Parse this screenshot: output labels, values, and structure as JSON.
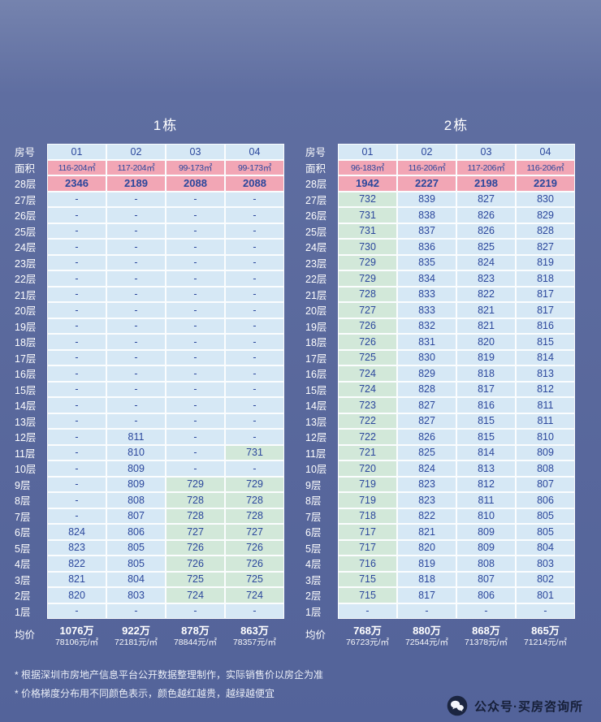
{
  "chart_data": [
    {
      "type": "table",
      "title": "1栋",
      "row_label_header": "房号",
      "area_row_label": "面积",
      "avg_row_label": "均价",
      "columns": [
        "01",
        "02",
        "03",
        "04"
      ],
      "areas": [
        "116-204㎡",
        "117-204㎡",
        "99-173㎡",
        "99-173㎡"
      ],
      "floor_rows": [
        [
          "28层",
          "2346",
          "2189",
          "2088",
          "2088",
          "pppp"
        ],
        [
          "27层",
          "-",
          "-",
          "-",
          "-",
          "bbbb"
        ],
        [
          "26层",
          "-",
          "-",
          "-",
          "-",
          "bbbb"
        ],
        [
          "25层",
          "-",
          "-",
          "-",
          "-",
          "bbbb"
        ],
        [
          "24层",
          "-",
          "-",
          "-",
          "-",
          "bbbb"
        ],
        [
          "23层",
          "-",
          "-",
          "-",
          "-",
          "bbbb"
        ],
        [
          "22层",
          "-",
          "-",
          "-",
          "-",
          "bbbb"
        ],
        [
          "21层",
          "-",
          "-",
          "-",
          "-",
          "bbbb"
        ],
        [
          "20层",
          "-",
          "-",
          "-",
          "-",
          "bbbb"
        ],
        [
          "19层",
          "-",
          "-",
          "-",
          "-",
          "bbbb"
        ],
        [
          "18层",
          "-",
          "-",
          "-",
          "-",
          "bbbb"
        ],
        [
          "17层",
          "-",
          "-",
          "-",
          "-",
          "bbbb"
        ],
        [
          "16层",
          "-",
          "-",
          "-",
          "-",
          "bbbb"
        ],
        [
          "15层",
          "-",
          "-",
          "-",
          "-",
          "bbbb"
        ],
        [
          "14层",
          "-",
          "-",
          "-",
          "-",
          "bbbb"
        ],
        [
          "13层",
          "-",
          "-",
          "-",
          "-",
          "bbbb"
        ],
        [
          "12层",
          "-",
          "811",
          "-",
          "-",
          "bbbb"
        ],
        [
          "11层",
          "-",
          "810",
          "-",
          "731",
          "bbbg"
        ],
        [
          "10层",
          "-",
          "809",
          "-",
          "-",
          "bbbb"
        ],
        [
          "9层",
          "-",
          "809",
          "729",
          "729",
          "bbgg"
        ],
        [
          "8层",
          "-",
          "808",
          "728",
          "728",
          "bbgg"
        ],
        [
          "7层",
          "-",
          "807",
          "728",
          "728",
          "bbgg"
        ],
        [
          "6层",
          "824",
          "806",
          "727",
          "727",
          "bbgg"
        ],
        [
          "5层",
          "823",
          "805",
          "726",
          "726",
          "bbgg"
        ],
        [
          "4层",
          "822",
          "805",
          "726",
          "726",
          "bbgg"
        ],
        [
          "3层",
          "821",
          "804",
          "725",
          "725",
          "bbgg"
        ],
        [
          "2层",
          "820",
          "803",
          "724",
          "724",
          "bbgg"
        ],
        [
          "1层",
          "-",
          "-",
          "-",
          "-",
          "bbbb"
        ]
      ],
      "averages": [
        [
          "1076万",
          "78106元/㎡"
        ],
        [
          "922万",
          "72181元/㎡"
        ],
        [
          "878万",
          "78844元/㎡"
        ],
        [
          "863万",
          "78357元/㎡"
        ]
      ]
    },
    {
      "type": "table",
      "title": "2栋",
      "row_label_header": "房号",
      "area_row_label": "面积",
      "avg_row_label": "均价",
      "columns": [
        "01",
        "02",
        "03",
        "04"
      ],
      "areas": [
        "96-183㎡",
        "116-206㎡",
        "117-206㎡",
        "116-206㎡"
      ],
      "floor_rows": [
        [
          "28层",
          "1942",
          "2227",
          "2198",
          "2219",
          "pppp"
        ],
        [
          "27层",
          "732",
          "839",
          "827",
          "830",
          "gbbb"
        ],
        [
          "26层",
          "731",
          "838",
          "826",
          "829",
          "gbbb"
        ],
        [
          "25层",
          "731",
          "837",
          "826",
          "828",
          "gbbb"
        ],
        [
          "24层",
          "730",
          "836",
          "825",
          "827",
          "gbbb"
        ],
        [
          "23层",
          "729",
          "835",
          "824",
          "819",
          "gbbb"
        ],
        [
          "22层",
          "729",
          "834",
          "823",
          "818",
          "gbbb"
        ],
        [
          "21层",
          "728",
          "833",
          "822",
          "817",
          "gbbb"
        ],
        [
          "20层",
          "727",
          "833",
          "821",
          "817",
          "gbbb"
        ],
        [
          "19层",
          "726",
          "832",
          "821",
          "816",
          "gbbb"
        ],
        [
          "18层",
          "726",
          "831",
          "820",
          "815",
          "gbbb"
        ],
        [
          "17层",
          "725",
          "830",
          "819",
          "814",
          "gbbb"
        ],
        [
          "16层",
          "724",
          "829",
          "818",
          "813",
          "gbbb"
        ],
        [
          "15层",
          "724",
          "828",
          "817",
          "812",
          "gbbb"
        ],
        [
          "14层",
          "723",
          "827",
          "816",
          "811",
          "gbbb"
        ],
        [
          "13层",
          "722",
          "827",
          "815",
          "811",
          "gbbb"
        ],
        [
          "12层",
          "722",
          "826",
          "815",
          "810",
          "gbbb"
        ],
        [
          "11层",
          "721",
          "825",
          "814",
          "809",
          "gbbb"
        ],
        [
          "10层",
          "720",
          "824",
          "813",
          "808",
          "gbbb"
        ],
        [
          "9层",
          "719",
          "823",
          "812",
          "807",
          "gbbb"
        ],
        [
          "8层",
          "719",
          "823",
          "811",
          "806",
          "gbbb"
        ],
        [
          "7层",
          "718",
          "822",
          "810",
          "805",
          "gbbb"
        ],
        [
          "6层",
          "717",
          "821",
          "809",
          "805",
          "gbbb"
        ],
        [
          "5层",
          "717",
          "820",
          "809",
          "804",
          "gbbb"
        ],
        [
          "4层",
          "716",
          "819",
          "808",
          "803",
          "gbbb"
        ],
        [
          "3层",
          "715",
          "818",
          "807",
          "802",
          "gbbb"
        ],
        [
          "2层",
          "715",
          "817",
          "806",
          "801",
          "gbbb"
        ],
        [
          "1层",
          "-",
          "-",
          "-",
          "-",
          "bbbb"
        ]
      ],
      "averages": [
        [
          "768万",
          "76723元/㎡"
        ],
        [
          "880万",
          "72544元/㎡"
        ],
        [
          "868万",
          "71378元/㎡"
        ],
        [
          "865万",
          "71214元/㎡"
        ]
      ]
    }
  ],
  "footnotes": [
    "* 根据深圳市房地产信息平台公开数据整理制作，实际销售价以房企为准",
    "* 价格梯度分布用不同颜色表示，颜色越红越贵，越绿越便宜"
  ],
  "badge": {
    "icon": "wechat-icon",
    "text": "公众号·买房咨询所"
  },
  "colors": {
    "background": "#59689c",
    "cell_blue": "#d6e8f5",
    "cell_green": "#d2e8d9",
    "cell_pink": "#f2a6b5",
    "cell_text": "#2b479c",
    "label_text": "#ffffff"
  }
}
